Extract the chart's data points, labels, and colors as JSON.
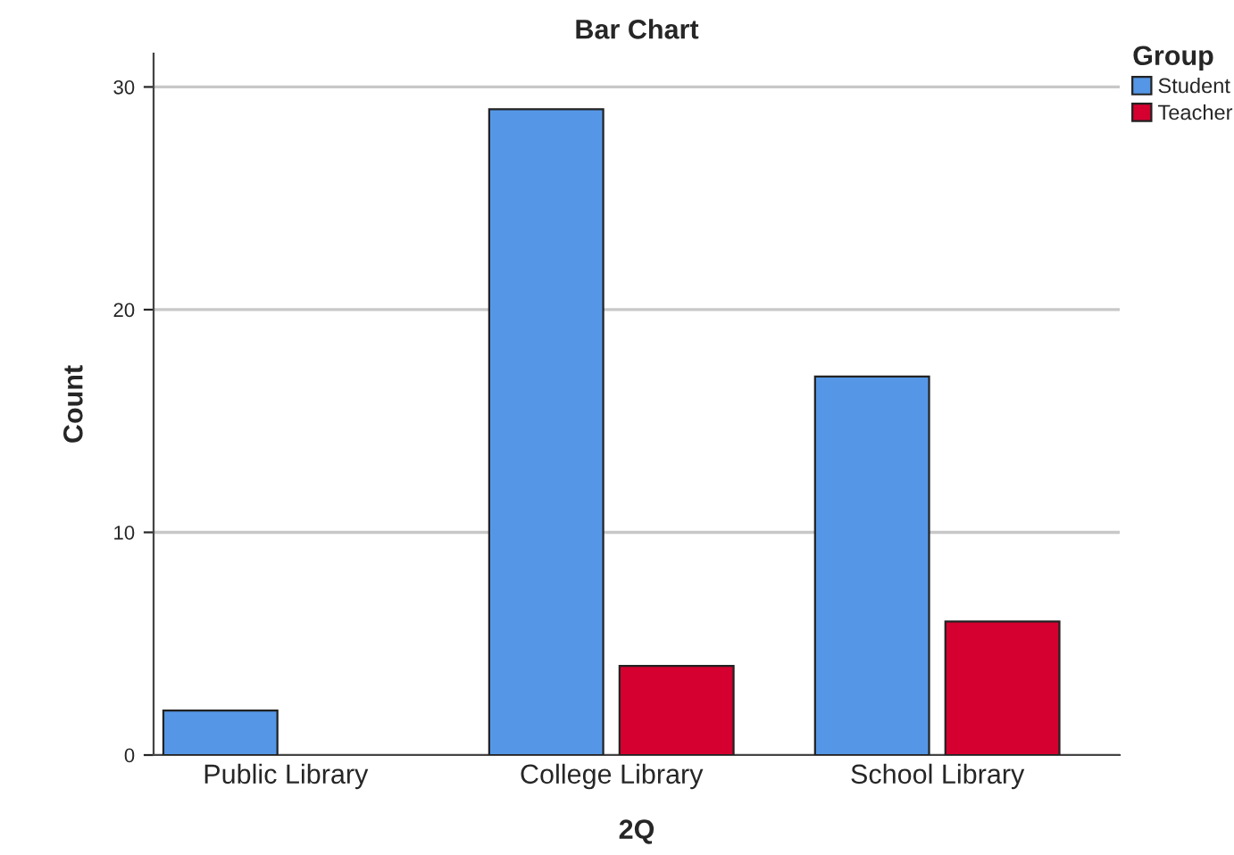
{
  "chart_data": {
    "type": "bar",
    "title": "Bar Chart",
    "xlabel": "2Q",
    "ylabel": "Count",
    "legend_title": "Group",
    "categories": [
      "Public Library",
      "College Library",
      "School Library"
    ],
    "series": [
      {
        "name": "Student",
        "color": "#5597e6",
        "values": [
          2,
          29,
          17
        ]
      },
      {
        "name": "Teacher",
        "color": "#d5002f",
        "values": [
          null,
          4,
          6
        ]
      }
    ],
    "ylim": [
      0,
      31.5
    ],
    "yticks": [
      0,
      10,
      20,
      30
    ],
    "grid": "y",
    "legend": "top right"
  }
}
